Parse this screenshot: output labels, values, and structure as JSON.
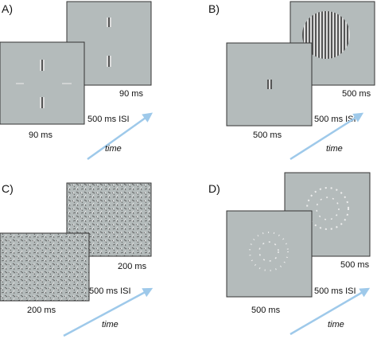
{
  "panels": [
    {
      "label": "A)",
      "back_duration": "90 ms",
      "front_duration": "90 ms",
      "isi": "500 ms ISI",
      "axis": "time"
    },
    {
      "label": "B)",
      "back_duration": "500 ms",
      "front_duration": "500 ms",
      "isi": "500 ms ISI",
      "axis": "time"
    },
    {
      "label": "C)",
      "back_duration": "200 ms",
      "front_duration": "200 ms",
      "isi": "500 ms ISI",
      "axis": "time"
    },
    {
      "label": "D)",
      "back_duration": "500 ms",
      "front_duration": "500 ms",
      "isi": "500 ms ISI",
      "axis": "time"
    }
  ]
}
